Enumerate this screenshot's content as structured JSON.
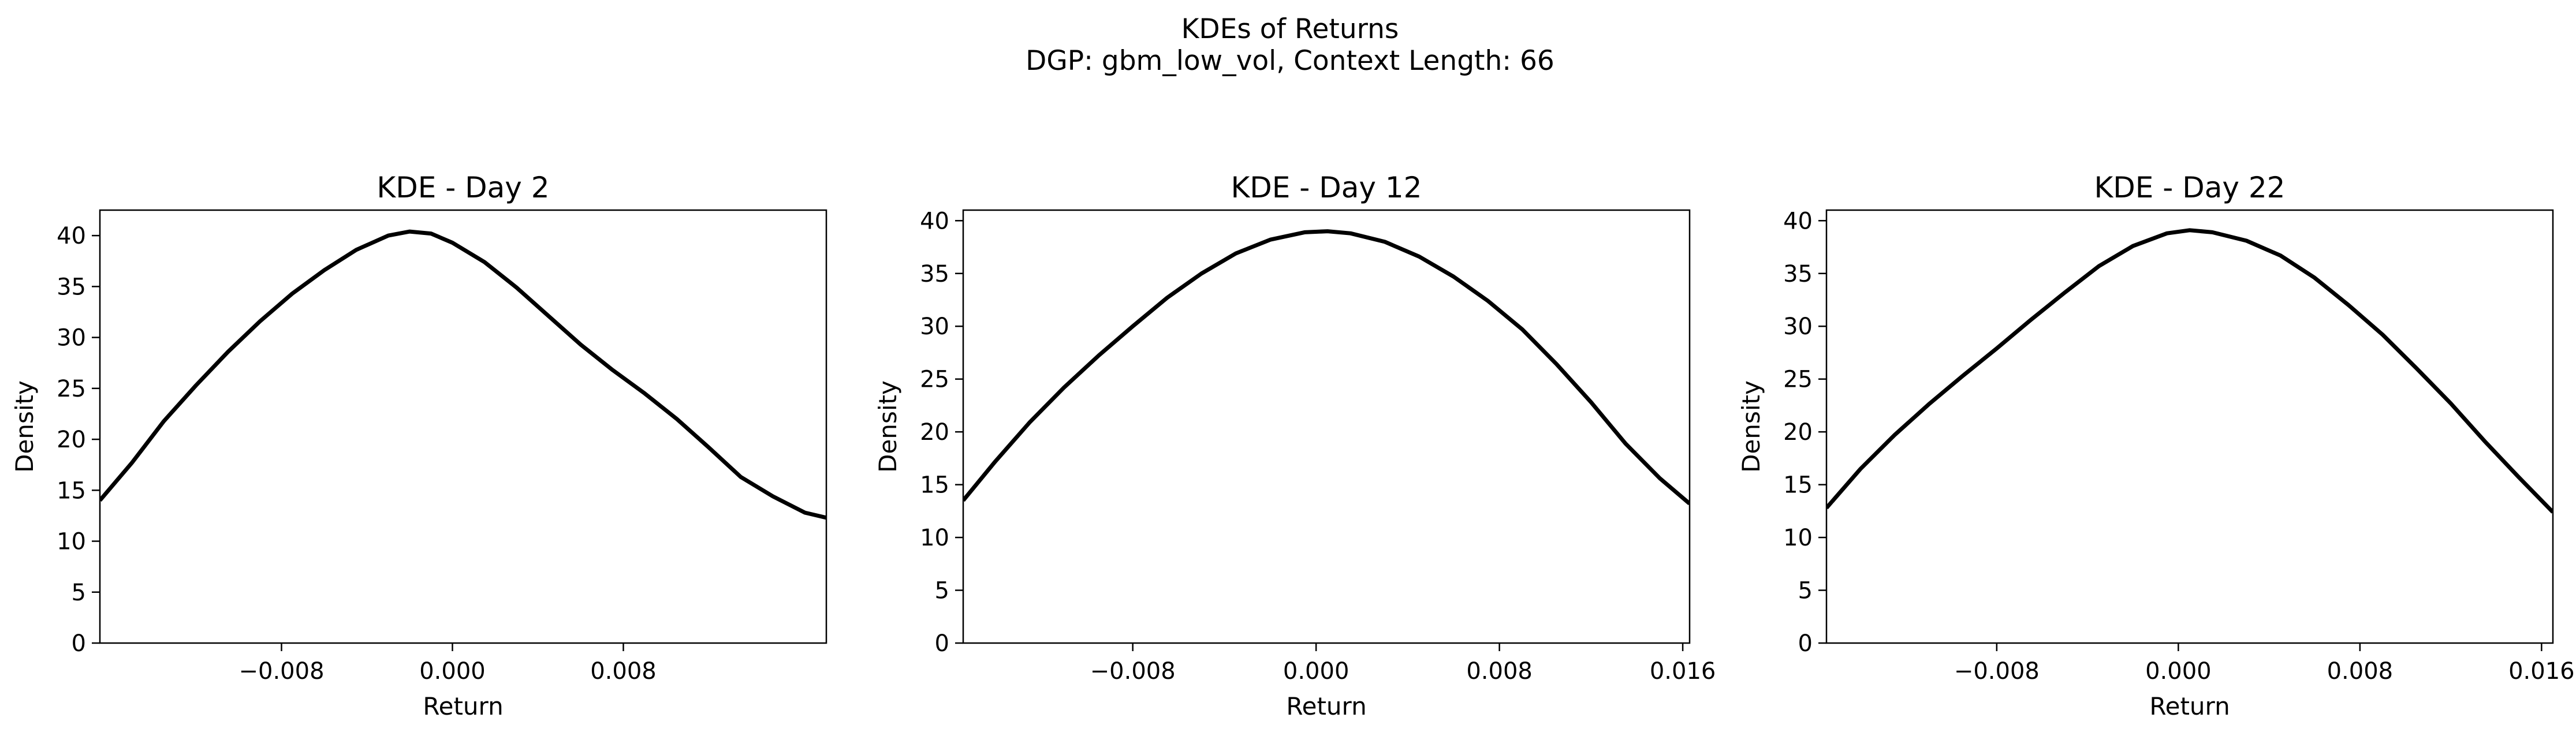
{
  "figure": {
    "suptitle_line1": "KDEs of Returns",
    "suptitle_line2": "DGP: gbm_low_vol, Context Length: 66"
  },
  "chart_data": [
    {
      "type": "line",
      "title": "KDE - Day 2",
      "xlabel": "Return",
      "ylabel": "Density",
      "xlim": [
        -0.0165,
        0.0175
      ],
      "ylim": [
        0,
        42.5
      ],
      "xticks": [
        -0.008,
        0.0,
        0.008
      ],
      "xtick_labels": [
        "−0.008",
        "0.000",
        "0.008"
      ],
      "yticks": [
        0,
        5,
        10,
        15,
        20,
        25,
        30,
        35,
        40
      ],
      "ytick_labels": [
        "0",
        "5",
        "10",
        "15",
        "20",
        "25",
        "30",
        "35",
        "40"
      ],
      "grid": false,
      "line_color": "#000000",
      "series": [
        {
          "x": [
            -0.0165,
            -0.015,
            -0.0135,
            -0.012,
            -0.0105,
            -0.009,
            -0.0075,
            -0.006,
            -0.0045,
            -0.003,
            -0.002,
            -0.001,
            0.0,
            0.0015,
            0.003,
            0.0045,
            0.006,
            0.0075,
            0.009,
            0.0105,
            0.012,
            0.0135,
            0.015,
            0.0165,
            0.0175
          ],
          "y": [
            14.0,
            17.7,
            21.8,
            25.3,
            28.6,
            31.6,
            34.3,
            36.6,
            38.6,
            40.0,
            40.4,
            40.2,
            39.3,
            37.4,
            34.9,
            32.1,
            29.3,
            26.8,
            24.5,
            22.0,
            19.2,
            16.3,
            14.4,
            12.8,
            12.3
          ]
        }
      ]
    },
    {
      "type": "line",
      "title": "KDE - Day 12",
      "xlabel": "Return",
      "ylabel": "Density",
      "xlim": [
        -0.0154,
        0.0163
      ],
      "ylim": [
        0,
        41
      ],
      "xticks": [
        -0.008,
        0.0,
        0.008,
        0.016
      ],
      "xtick_labels": [
        "−0.008",
        "0.000",
        "0.008",
        "0.016"
      ],
      "yticks": [
        0,
        5,
        10,
        15,
        20,
        25,
        30,
        35,
        40
      ],
      "ytick_labels": [
        "0",
        "5",
        "10",
        "15",
        "20",
        "25",
        "30",
        "35",
        "40"
      ],
      "grid": false,
      "line_color": "#000000",
      "series": [
        {
          "x": [
            -0.0154,
            -0.014,
            -0.0125,
            -0.011,
            -0.0095,
            -0.008,
            -0.0065,
            -0.005,
            -0.0035,
            -0.002,
            -0.0005,
            0.0005,
            0.0015,
            0.003,
            0.0045,
            0.006,
            0.0075,
            0.009,
            0.0105,
            0.012,
            0.0135,
            0.015,
            0.0163
          ],
          "y": [
            13.5,
            17.2,
            20.9,
            24.2,
            27.2,
            30.0,
            32.7,
            35.0,
            36.9,
            38.2,
            38.9,
            39.0,
            38.8,
            38.0,
            36.6,
            34.7,
            32.4,
            29.7,
            26.4,
            22.8,
            18.9,
            15.6,
            13.2
          ]
        }
      ]
    },
    {
      "type": "line",
      "title": "KDE - Day 22",
      "xlabel": "Return",
      "ylabel": "Density",
      "xlim": [
        -0.0155,
        0.0165
      ],
      "ylim": [
        0,
        41
      ],
      "xticks": [
        -0.008,
        0.0,
        0.008,
        0.016
      ],
      "xtick_labels": [
        "−0.008",
        "0.000",
        "0.008",
        "0.016"
      ],
      "yticks": [
        0,
        5,
        10,
        15,
        20,
        25,
        30,
        35,
        40
      ],
      "ytick_labels": [
        "0",
        "5",
        "10",
        "15",
        "20",
        "25",
        "30",
        "35",
        "40"
      ],
      "grid": false,
      "line_color": "#000000",
      "series": [
        {
          "x": [
            -0.0155,
            -0.014,
            -0.0125,
            -0.011,
            -0.0095,
            -0.008,
            -0.0065,
            -0.005,
            -0.0035,
            -0.002,
            -0.0005,
            0.0005,
            0.0015,
            0.003,
            0.0045,
            0.006,
            0.0075,
            0.009,
            0.0105,
            0.012,
            0.0135,
            0.015,
            0.0165
          ],
          "y": [
            12.8,
            16.5,
            19.7,
            22.6,
            25.3,
            27.9,
            30.6,
            33.2,
            35.7,
            37.6,
            38.8,
            39.1,
            38.9,
            38.1,
            36.7,
            34.6,
            32.0,
            29.2,
            26.0,
            22.7,
            19.1,
            15.7,
            12.4
          ]
        }
      ]
    }
  ]
}
